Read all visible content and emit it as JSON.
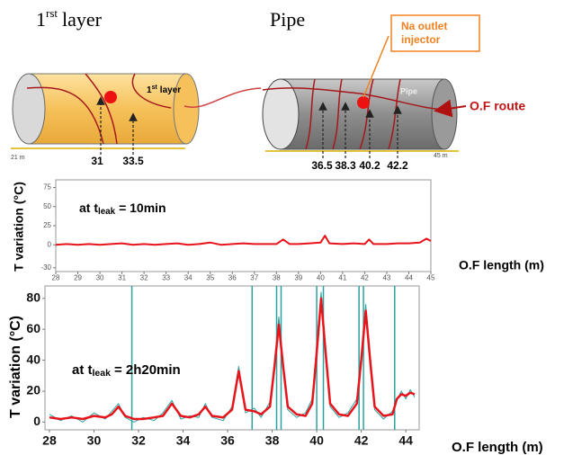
{
  "diagram": {
    "title_1": {
      "number": "1",
      "sup": "rst",
      "word": "layer"
    },
    "title_2": "Pipe",
    "cylinder_label_1": {
      "number": "1",
      "sup": "st",
      "word": "layer"
    },
    "cylinder_label_2": "Pipe",
    "injector": [
      "Na outlet",
      "injector"
    ],
    "route": "O.F route",
    "scale": [
      "21 m",
      "45 m"
    ],
    "positions_1": [
      31,
      33.5
    ],
    "positions_2": [
      36.5,
      38.3,
      40.2,
      42.2
    ]
  },
  "chart_data": [
    {
      "type": "line",
      "annotation": {
        "prefix": "at t",
        "sub": "leak",
        "suffix": "= 10min"
      },
      "y_label": "T variation (°C)",
      "x_label": "O.F length (m)",
      "x": [
        28,
        28.5,
        29,
        29.5,
        30,
        30.5,
        31,
        31.5,
        32,
        32.5,
        33,
        33.5,
        34,
        34.5,
        35,
        35.5,
        36,
        36.5,
        37,
        37.5,
        38,
        38.3,
        38.6,
        39,
        39.5,
        40,
        40.2,
        40.4,
        41,
        41.5,
        42,
        42.2,
        42.4,
        43,
        43.5,
        44,
        44.5,
        44.8,
        45
      ],
      "series": [
        {
          "color": "#e8141b",
          "values": [
            0,
            1,
            0,
            1,
            0,
            1,
            2,
            0,
            1,
            0,
            1,
            2,
            0,
            1,
            3,
            0,
            1,
            2,
            1,
            1,
            1,
            7,
            1,
            1,
            2,
            3,
            12,
            2,
            1,
            2,
            1,
            7,
            1,
            1,
            2,
            2,
            3,
            8,
            5
          ]
        }
      ],
      "xlim": [
        28,
        45
      ],
      "xticks": [
        28,
        29,
        30,
        31,
        32,
        33,
        34,
        35,
        36,
        37,
        38,
        39,
        40,
        41,
        42,
        43,
        44,
        45
      ],
      "ylim": [
        -35,
        85
      ],
      "yticks": [
        -30,
        0,
        25,
        50,
        75
      ]
    },
    {
      "type": "line",
      "annotation": {
        "prefix": "at t",
        "sub": "leak",
        "suffix": "= 2h20min"
      },
      "y_label": "T variation (°C)",
      "x_label": "O.F length (m)",
      "x": [
        28,
        28.5,
        29,
        29.5,
        30,
        30.5,
        30.8,
        31.1,
        31.4,
        31.8,
        32.2,
        32.7,
        33.1,
        33.5,
        33.9,
        34.3,
        34.7,
        35,
        35.3,
        35.8,
        36.2,
        36.5,
        36.8,
        37.2,
        37.5,
        37.9,
        38.1,
        38.3,
        38.5,
        38.7,
        39.1,
        39.5,
        39.8,
        40,
        40.2,
        40.4,
        40.6,
        41,
        41.4,
        41.8,
        42,
        42.2,
        42.4,
        42.6,
        43,
        43.4,
        43.6,
        43.8,
        44,
        44.2,
        44.4
      ],
      "series": [
        {
          "color": "#2aa3a0",
          "values": [
            5,
            1,
            4,
            0,
            6,
            2,
            7,
            12,
            3,
            0,
            3,
            1,
            6,
            14,
            2,
            4,
            3,
            12,
            3,
            1,
            10,
            36,
            6,
            9,
            3,
            13,
            38,
            68,
            33,
            8,
            3,
            6,
            15,
            50,
            84,
            40,
            10,
            3,
            6,
            15,
            44,
            76,
            36,
            8,
            2,
            7,
            14,
            20,
            15,
            21,
            16
          ]
        },
        {
          "color": "#e8141b",
          "values": [
            3,
            2,
            3,
            2,
            4,
            3,
            5,
            10,
            4,
            2,
            2,
            3,
            4,
            12,
            4,
            3,
            5,
            10,
            4,
            3,
            8,
            33,
            8,
            7,
            5,
            10,
            35,
            63,
            35,
            10,
            5,
            4,
            12,
            45,
            80,
            45,
            12,
            5,
            4,
            12,
            40,
            72,
            40,
            10,
            4,
            5,
            15,
            18,
            17,
            19,
            18
          ]
        }
      ],
      "vlines": {
        "color": "#2aa3a0",
        "x": [
          31.7,
          37.1,
          38.2,
          38.4,
          40,
          40.3,
          41.9,
          42.1,
          43.5
        ]
      },
      "xlim": [
        27.8,
        44.6
      ],
      "xticks": [
        28,
        30,
        32,
        34,
        36,
        38,
        40,
        42,
        44
      ],
      "ylim": [
        -5,
        88
      ],
      "yticks": [
        0,
        20,
        40,
        60,
        80
      ]
    }
  ]
}
